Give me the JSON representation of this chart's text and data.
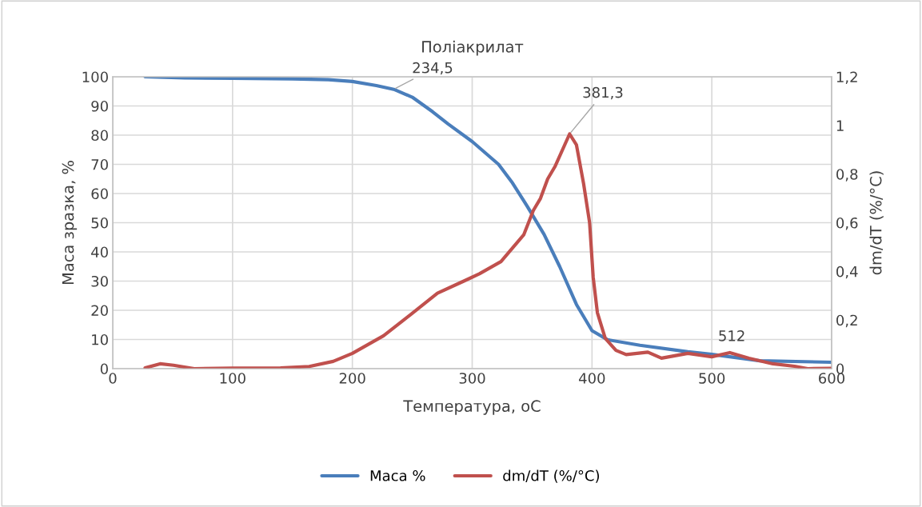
{
  "chart_data": {
    "type": "line",
    "title": "Поліакрилат",
    "xlabel": "Температура, oC",
    "ylabel": "Маса зразка, %",
    "y2label": "dm/dT (%/°C)",
    "xlim": [
      0,
      600
    ],
    "xticks": [
      0,
      100,
      200,
      300,
      400,
      500,
      600
    ],
    "ylim": [
      0,
      100
    ],
    "yticks": [
      0,
      10,
      20,
      30,
      40,
      50,
      60,
      70,
      80,
      90,
      100
    ],
    "y2lim": [
      0,
      1.2
    ],
    "y2ticks": [
      0,
      {
        "value": 0.2,
        "label": "0,2"
      },
      {
        "value": 0.4,
        "label": "0,4"
      },
      {
        "value": 0.6,
        "label": "0,6"
      },
      {
        "value": 0.8,
        "label": "0,8"
      },
      1,
      {
        "value": 1.2,
        "label": "1,2"
      }
    ],
    "grid": true,
    "legend": "bottom",
    "marker": "none",
    "line_style": "solid",
    "series": [
      {
        "name": "Маса %",
        "color": "#4a7ebb",
        "x": [
          27,
          60,
          100,
          150,
          180,
          200,
          220,
          234.5,
          250,
          267,
          280,
          300,
          322,
          333,
          346,
          360,
          373,
          387,
          400,
          413,
          440,
          480,
          500,
          540,
          600
        ],
        "values": [
          100,
          99.6,
          99.5,
          99.3,
          99,
          98.4,
          97,
          95.7,
          93,
          88,
          83.8,
          77.8,
          70,
          64,
          55.6,
          46,
          35,
          22,
          13,
          9.9,
          8,
          5.8,
          4.9,
          2.7,
          2.2
        ]
      },
      {
        "name": "dm/dT (%/°C)",
        "color": "#c0504d",
        "axis": "y2",
        "x": [
          27,
          39.5,
          50.7,
          68,
          100,
          140,
          164,
          184,
          200,
          226,
          248,
          271,
          293,
          306,
          324,
          343,
          351,
          357,
          363,
          369,
          381.3,
          387,
          393,
          398,
          401,
          404.5,
          411,
          420,
          428.5,
          446.6,
          458,
          480,
          500,
          515,
          531,
          551,
          569,
          580,
          600
        ],
        "values": [
          0.003,
          0.02,
          0.014,
          0.0,
          0.002,
          0.003,
          0.009,
          0.03,
          0.063,
          0.135,
          0.22,
          0.31,
          0.36,
          0.39,
          0.44,
          0.55,
          0.65,
          0.7,
          0.78,
          0.83,
          0.965,
          0.92,
          0.76,
          0.6,
          0.375,
          0.23,
          0.125,
          0.075,
          0.058,
          0.068,
          0.043,
          0.063,
          0.049,
          0.066,
          0.043,
          0.02,
          0.01,
          0.0,
          0.001
        ]
      }
    ],
    "annotations": [
      {
        "text": "234,5",
        "x": 234.5,
        "y": 95.7
      },
      {
        "text": "381,3",
        "x": 381.3,
        "y": 80.4
      },
      {
        "text": "512",
        "x": 512,
        "y": 5.4
      }
    ]
  }
}
